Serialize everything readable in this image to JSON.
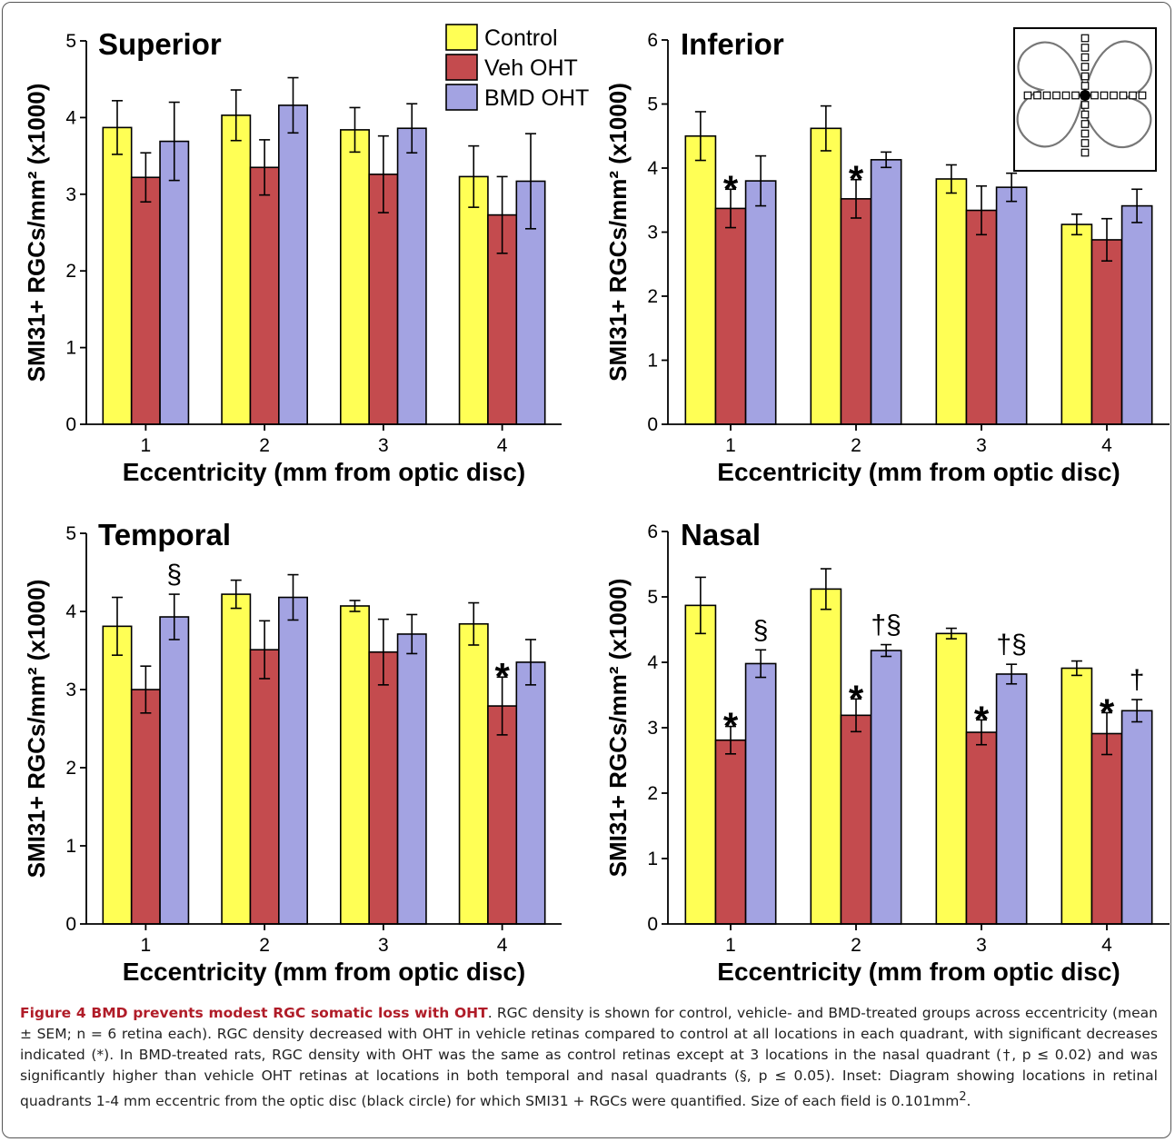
{
  "colors": {
    "control": "#ffff55",
    "veh": "#c44b4e",
    "bmd": "#a3a3e2",
    "axis": "#000000"
  },
  "legend": [
    {
      "key": "control",
      "label": "Control"
    },
    {
      "key": "veh",
      "label": "Veh OHT"
    },
    {
      "key": "bmd",
      "label": "BMD OHT"
    }
  ],
  "chart_data": [
    {
      "type": "bar",
      "title": "Superior",
      "xlabel": "Eccentricity (mm from optic disc)",
      "ylabel": "SMI31+ RGCs/mm² (x1000)",
      "categories": [
        "1",
        "2",
        "3",
        "4"
      ],
      "ylim": [
        0,
        5
      ],
      "series": [
        {
          "name": "Control",
          "values": [
            3.87,
            4.03,
            3.84,
            3.23
          ],
          "err": [
            0.35,
            0.33,
            0.29,
            0.4
          ]
        },
        {
          "name": "Veh OHT",
          "values": [
            3.22,
            3.35,
            3.26,
            2.73
          ],
          "err": [
            0.32,
            0.36,
            0.5,
            0.5
          ]
        },
        {
          "name": "BMD OHT",
          "values": [
            3.69,
            4.16,
            3.86,
            3.17
          ],
          "err": [
            0.51,
            0.36,
            0.32,
            0.62
          ]
        }
      ],
      "annotations": []
    },
    {
      "type": "bar",
      "title": "Inferior",
      "xlabel": "Eccentricity (mm from optic disc)",
      "ylabel": "SMI31+ RGCs/mm² (x1000)",
      "categories": [
        "1",
        "2",
        "3",
        "4"
      ],
      "ylim": [
        0,
        6
      ],
      "series": [
        {
          "name": "Control",
          "values": [
            4.5,
            4.62,
            3.83,
            3.12
          ],
          "err": [
            0.38,
            0.35,
            0.22,
            0.16
          ]
        },
        {
          "name": "Veh OHT",
          "values": [
            3.37,
            3.52,
            3.34,
            2.88
          ],
          "err": [
            0.3,
            0.3,
            0.38,
            0.33
          ]
        },
        {
          "name": "BMD OHT",
          "values": [
            3.8,
            4.13,
            3.7,
            3.41
          ],
          "err": [
            0.39,
            0.12,
            0.22,
            0.26
          ]
        }
      ],
      "annotations": [
        {
          "category": 0,
          "series": 1,
          "text": "*"
        },
        {
          "category": 1,
          "series": 1,
          "text": "*"
        }
      ]
    },
    {
      "type": "bar",
      "title": "Temporal",
      "xlabel": "Eccentricity (mm from optic disc)",
      "ylabel": "SMI31+ RGCs/mm² (x1000)",
      "categories": [
        "1",
        "2",
        "3",
        "4"
      ],
      "ylim": [
        0,
        5
      ],
      "series": [
        {
          "name": "Control",
          "values": [
            3.81,
            4.22,
            4.07,
            3.84
          ],
          "err": [
            0.37,
            0.18,
            0.07,
            0.27
          ]
        },
        {
          "name": "Veh OHT",
          "values": [
            3.0,
            3.51,
            3.48,
            2.79
          ],
          "err": [
            0.3,
            0.37,
            0.42,
            0.37
          ]
        },
        {
          "name": "BMD OHT",
          "values": [
            3.93,
            4.18,
            3.71,
            3.35
          ],
          "err": [
            0.29,
            0.29,
            0.25,
            0.29
          ]
        }
      ],
      "annotations": [
        {
          "category": 0,
          "series": 2,
          "text": "§"
        },
        {
          "category": 3,
          "series": 1,
          "text": "*"
        }
      ]
    },
    {
      "type": "bar",
      "title": "Nasal",
      "xlabel": "Eccentricity (mm from optic disc)",
      "ylabel": "SMI31+ RGCs/mm² (x1000)",
      "categories": [
        "1",
        "2",
        "3",
        "4"
      ],
      "ylim": [
        0,
        6
      ],
      "series": [
        {
          "name": "Control",
          "values": [
            4.87,
            5.12,
            4.44,
            3.91
          ],
          "err": [
            0.43,
            0.31,
            0.08,
            0.11
          ]
        },
        {
          "name": "Veh OHT",
          "values": [
            2.81,
            3.19,
            2.93,
            2.91
          ],
          "err": [
            0.21,
            0.25,
            0.19,
            0.32
          ]
        },
        {
          "name": "BMD OHT",
          "values": [
            3.98,
            4.18,
            3.82,
            3.26
          ],
          "err": [
            0.21,
            0.09,
            0.15,
            0.17
          ]
        }
      ],
      "annotations": [
        {
          "category": 0,
          "series": 1,
          "text": "*"
        },
        {
          "category": 0,
          "series": 2,
          "text": "§"
        },
        {
          "category": 1,
          "series": 1,
          "text": "*"
        },
        {
          "category": 1,
          "series": 2,
          "text": "†§"
        },
        {
          "category": 2,
          "series": 1,
          "text": "*"
        },
        {
          "category": 2,
          "series": 2,
          "text": "†§"
        },
        {
          "category": 3,
          "series": 1,
          "text": "*"
        },
        {
          "category": 3,
          "series": 2,
          "text": "†"
        }
      ]
    }
  ],
  "caption": {
    "figure_label": "Figure 4",
    "title": "BMD prevents modest RGC somatic loss with OHT",
    "text": ". RGC density is shown for control, vehicle- and BMD-treated groups across eccentricity (mean ± SEM; n = 6 retina each). RGC density decreased with OHT in vehicle retinas compared to control at all locations in each quadrant, with significant decreases indicated (*). In BMD-treated rats, RGC density with OHT was the same as control retinas except at 3 locations in the nasal quadrant (†, p ≤ 0.02) and was significantly higher than vehicle OHT retinas at locations in both temporal and nasal quadrants (§, p ≤ 0.05). Inset: Diagram showing locations in retinal quadrants 1-4 mm eccentric from the optic disc (black circle) for which SMI31 + RGCs were quantified. Size of each field is 0.101mm",
    "superscript": "2",
    "end": "."
  }
}
